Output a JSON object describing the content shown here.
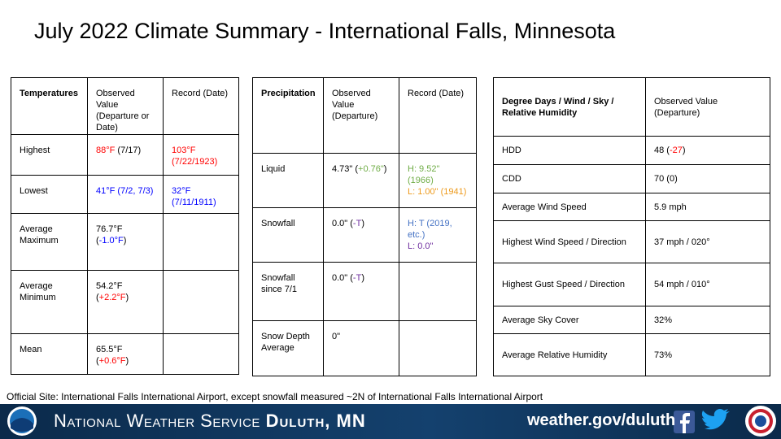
{
  "title": "July 2022 Climate Summary - International Falls, Minnesota",
  "tables": [
    {
      "headers": [
        "Temperatures",
        "Observed Value (Departure or Date)",
        "Record (Date)"
      ],
      "rows": [
        [
          "Highest",
          [
            [
              {
                "text": "88°F",
                "color": "#ff0000"
              },
              {
                "text": " (7/17)"
              }
            ]
          ],
          [
            [
              {
                "text": "103°F (7/22/1923)",
                "color": "#ff0000"
              }
            ]
          ]
        ],
        [
          "Lowest",
          [
            [
              {
                "text": "41°F (7/2, 7/3)",
                "color": "#0000ff"
              }
            ]
          ],
          [
            [
              {
                "text": "32°F (7/11/1911)",
                "color": "#0000ff"
              }
            ]
          ]
        ],
        [
          "Average Maximum",
          [
            [
              {
                "text": "76.7°F ("
              },
              {
                "text": "-1.0°F",
                "color": "#0000ff"
              },
              {
                "text": ")"
              }
            ]
          ],
          null
        ],
        [
          "Average Minimum",
          [
            [
              {
                "text": "54.2°F ("
              },
              {
                "text": "+2.2°F",
                "color": "#ff0000"
              },
              {
                "text": ")"
              }
            ]
          ],
          null
        ],
        [
          "Mean",
          [
            [
              {
                "text": "65.5°F ("
              },
              {
                "text": "+0.6°F",
                "color": "#ff0000"
              },
              {
                "text": ")"
              }
            ]
          ],
          null
        ]
      ]
    },
    {
      "headers": [
        "Precipitation",
        "Observed Value (Departure)",
        "Record (Date)"
      ],
      "rows": [
        [
          "Liquid",
          [
            [
              {
                "text": "4.73\" ("
              },
              {
                "text": "+0.76\"",
                "color": "#70ad47"
              },
              {
                "text": ")"
              }
            ]
          ],
          [
            [
              {
                "text": "H: 9.52\" (1966)",
                "color": "#70ad47"
              }
            ],
            [
              {
                "text": "L: 1.00\" (1941)",
                "color": "#ed9a1c"
              }
            ]
          ]
        ],
        [
          "Snowfall",
          [
            [
              {
                "text": "0.0\" ("
              },
              {
                "text": "-T",
                "color": "#7030a0"
              },
              {
                "text": ")"
              }
            ]
          ],
          [
            [
              {
                "text": "H: T (2019, etc.)",
                "color": "#4472c4"
              }
            ],
            [
              {
                "text": "L: 0.0\"",
                "color": "#7030a0"
              }
            ]
          ]
        ],
        [
          "Snowfall since 7/1",
          [
            [
              {
                "text": "0.0\" ("
              },
              {
                "text": "-T",
                "color": "#7030a0"
              },
              {
                "text": ")"
              }
            ]
          ],
          null
        ],
        [
          "Snow Depth Average",
          [
            [
              {
                "text": "0\""
              }
            ]
          ],
          null
        ]
      ]
    },
    {
      "headers": [
        "Degree Days / Wind / Sky / Relative Humidity",
        "Observed Value (Departure)"
      ],
      "rows": [
        [
          "HDD",
          [
            [
              {
                "text": "48 ("
              },
              {
                "text": "-27",
                "color": "#ff0000"
              },
              {
                "text": ")"
              }
            ]
          ]
        ],
        [
          "CDD",
          "70 (0)"
        ],
        [
          "Average Wind Speed",
          "5.9 mph"
        ],
        [
          "Highest Wind Speed / Direction",
          "37 mph / 020°"
        ],
        [
          "Highest Gust Speed / Direction",
          "54 mph / 010°"
        ],
        [
          "Average Sky Cover",
          "32%"
        ],
        [
          "Average Relative Humidity",
          "73%"
        ]
      ]
    }
  ],
  "footnote": "Official Site: International Falls International Airport, except snowfall measured ~2N of International Falls International Airport",
  "footer": {
    "organization": "National Weather Service",
    "office": "Duluth, MN",
    "url": "weather.gov/duluth"
  }
}
